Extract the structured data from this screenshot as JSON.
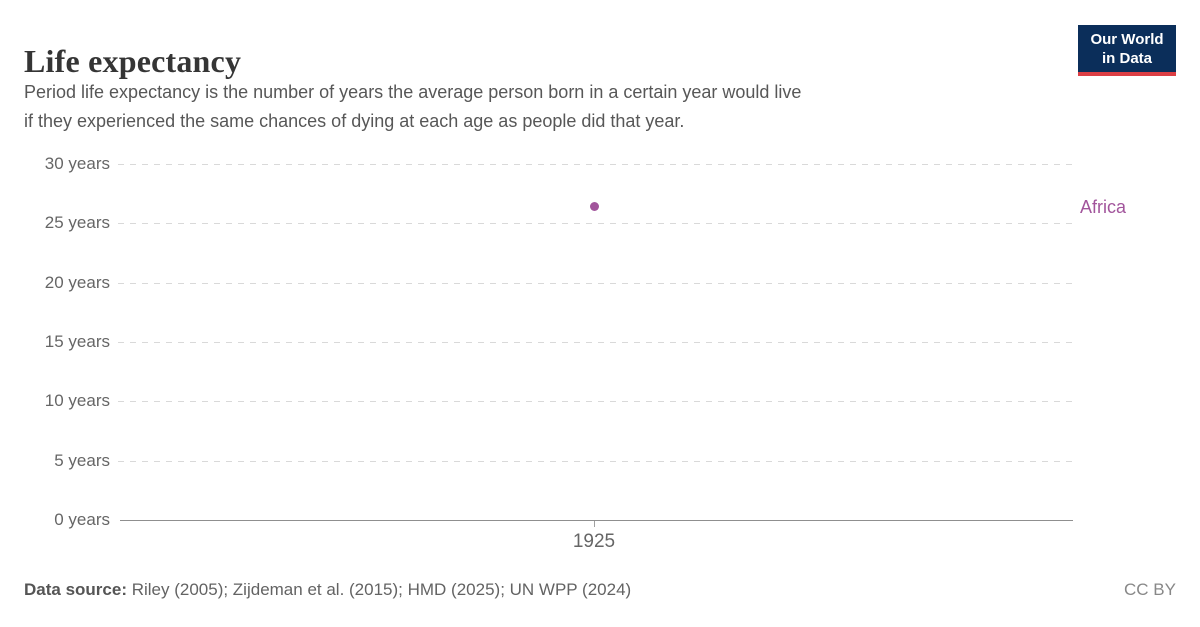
{
  "header": {
    "title": "Life expectancy",
    "subtitle_lines": [
      "Period life expectancy is the number of years the average person born in a certain year would live",
      "if they experienced the same chances of dying at each age as people did that year."
    ],
    "logo": {
      "line1": "Our World",
      "line2": "in Data"
    }
  },
  "chart_data": {
    "type": "scatter",
    "title": "Life expectancy",
    "ylim": [
      0,
      30
    ],
    "grid": "dashed-horizontal",
    "legend_position": "right-of-plot",
    "yticks": [
      {
        "value": 30,
        "label": "30 years"
      },
      {
        "value": 25,
        "label": "25 years"
      },
      {
        "value": 20,
        "label": "20 years"
      },
      {
        "value": 15,
        "label": "15 years"
      },
      {
        "value": 10,
        "label": "10 years"
      },
      {
        "value": 5,
        "label": "5 years"
      },
      {
        "value": 0,
        "label": "0 years"
      }
    ],
    "xticks": [
      {
        "value": 1925,
        "label": "1925"
      }
    ],
    "series": [
      {
        "name": "Africa",
        "color": "#a2559c",
        "points": [
          {
            "x": 1925,
            "y": 26.4
          }
        ]
      }
    ]
  },
  "footer": {
    "source_label": "Data source:",
    "source_text": " Riley (2005); Zijdeman et al. (2015); HMD (2025); UN WPP (2024)",
    "license": "CC BY"
  },
  "colors": {
    "accent": "#a2559c",
    "logo_bg": "#0b2e5a",
    "logo_stripe": "#dc3e44",
    "gridline": "#d9d9d9",
    "axis": "#8f8f8f"
  }
}
